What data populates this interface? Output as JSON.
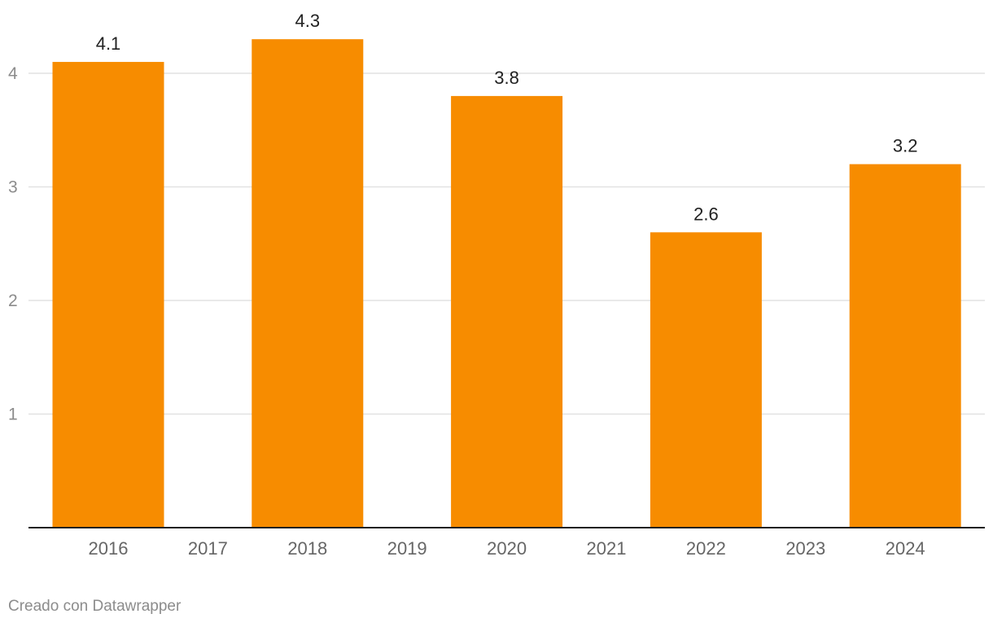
{
  "chart_data": {
    "type": "bar",
    "categories": [
      "2016",
      "2017",
      "2018",
      "2019",
      "2020",
      "2021",
      "2022",
      "2023",
      "2024"
    ],
    "values": [
      4.1,
      null,
      4.3,
      null,
      3.8,
      null,
      2.6,
      null,
      3.2
    ],
    "data_labels": [
      "4.1",
      "",
      "4.3",
      "",
      "3.8",
      "",
      "2.6",
      "",
      "3.2"
    ],
    "y_ticks": [
      1,
      2,
      3,
      4
    ],
    "y_tick_labels": [
      "1",
      "2",
      "3",
      "4"
    ],
    "ylim": [
      0,
      4.6
    ],
    "grid": true,
    "title": "",
    "xlabel": "",
    "ylabel": ""
  },
  "colors": {
    "bar": "#f78c00",
    "grid": "#e2e2e2",
    "baseline": "#222222",
    "tick_text": "#8c8c8c",
    "x_text": "#666666",
    "label_text": "#222222"
  },
  "footer": {
    "credit": "Creado con Datawrapper"
  }
}
